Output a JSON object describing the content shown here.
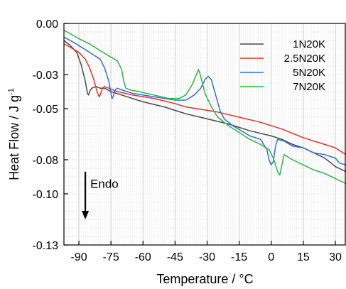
{
  "chart_data": {
    "type": "line",
    "xlabel": "Temperature / °C",
    "ylabel": "Heat Flow / J g",
    "ylabel_superscript": "-1",
    "xlim": [
      -97,
      35
    ],
    "ylim": [
      -0.13,
      0.0
    ],
    "xticks": [
      -90,
      -75,
      -60,
      -45,
      -30,
      -15,
      0,
      15,
      30
    ],
    "yticks": [
      0.0,
      -0.03,
      -0.05,
      -0.08,
      -0.1,
      -0.13
    ],
    "ytick_labels": [
      "0.00",
      "-0.03",
      "-0.05",
      "-0.08",
      "-0.10",
      "-0.13"
    ],
    "grid": true,
    "legend_position": "top-right",
    "annotation": {
      "text": "Endo"
    },
    "series": [
      {
        "name": "1N20K",
        "color": "#4a4a4a",
        "points": [
          [
            -97,
            -0.01
          ],
          [
            -94,
            -0.013
          ],
          [
            -91,
            -0.017
          ],
          [
            -89,
            -0.024
          ],
          [
            -87,
            -0.034
          ],
          [
            -86,
            -0.041
          ],
          [
            -85.5,
            -0.042
          ],
          [
            -85,
            -0.04
          ],
          [
            -84,
            -0.038
          ],
          [
            -82,
            -0.037
          ],
          [
            -80,
            -0.038
          ],
          [
            -78,
            -0.038
          ],
          [
            -75,
            -0.04
          ],
          [
            -70,
            -0.042
          ],
          [
            -60,
            -0.046
          ],
          [
            -50,
            -0.049
          ],
          [
            -40,
            -0.053
          ],
          [
            -30,
            -0.056
          ],
          [
            -20,
            -0.059
          ],
          [
            -10,
            -0.063
          ],
          [
            0,
            -0.066
          ],
          [
            5,
            -0.068
          ],
          [
            10,
            -0.071
          ],
          [
            15,
            -0.073
          ],
          [
            20,
            -0.076
          ],
          [
            25,
            -0.079
          ],
          [
            30,
            -0.084
          ],
          [
            35,
            -0.087
          ]
        ]
      },
      {
        "name": "2.5N20K",
        "color": "#e8312b",
        "points": [
          [
            -97,
            -0.012
          ],
          [
            -94,
            -0.014
          ],
          [
            -90,
            -0.017
          ],
          [
            -87,
            -0.021
          ],
          [
            -85,
            -0.026
          ],
          [
            -83,
            -0.033
          ],
          [
            -81.5,
            -0.04
          ],
          [
            -80.5,
            -0.043
          ],
          [
            -80,
            -0.042
          ],
          [
            -79,
            -0.038
          ],
          [
            -78,
            -0.037
          ],
          [
            -76,
            -0.038
          ],
          [
            -72,
            -0.04
          ],
          [
            -65,
            -0.042
          ],
          [
            -55,
            -0.044
          ],
          [
            -45,
            -0.047
          ],
          [
            -40,
            -0.049
          ],
          [
            -35,
            -0.05
          ],
          [
            -25,
            -0.052
          ],
          [
            -15,
            -0.055
          ],
          [
            -5,
            -0.058
          ],
          [
            5,
            -0.062
          ],
          [
            15,
            -0.067
          ],
          [
            25,
            -0.071
          ],
          [
            30,
            -0.073
          ],
          [
            35,
            -0.077
          ]
        ]
      },
      {
        "name": "5N20K",
        "color": "#2f6fd8",
        "points": [
          [
            -97,
            -0.008
          ],
          [
            -94,
            -0.01
          ],
          [
            -90,
            -0.013
          ],
          [
            -85,
            -0.017
          ],
          [
            -80,
            -0.021
          ],
          [
            -78,
            -0.026
          ],
          [
            -76,
            -0.034
          ],
          [
            -75,
            -0.041
          ],
          [
            -74.5,
            -0.044
          ],
          [
            -74,
            -0.043
          ],
          [
            -73,
            -0.039
          ],
          [
            -72,
            -0.038
          ],
          [
            -70,
            -0.039
          ],
          [
            -65,
            -0.041
          ],
          [
            -55,
            -0.043
          ],
          [
            -45,
            -0.045
          ],
          [
            -40,
            -0.045
          ],
          [
            -36,
            -0.042
          ],
          [
            -33,
            -0.038
          ],
          [
            -31,
            -0.033
          ],
          [
            -29.5,
            -0.031
          ],
          [
            -28,
            -0.033
          ],
          [
            -26,
            -0.042
          ],
          [
            -24,
            -0.051
          ],
          [
            -22,
            -0.056
          ],
          [
            -18,
            -0.06
          ],
          [
            -14,
            -0.063
          ],
          [
            -10,
            -0.066
          ],
          [
            -5,
            -0.068
          ],
          [
            -2,
            -0.074
          ],
          [
            -1,
            -0.08
          ],
          [
            0,
            -0.083
          ],
          [
            1,
            -0.081
          ],
          [
            2,
            -0.072
          ],
          [
            3,
            -0.068
          ],
          [
            6,
            -0.069
          ],
          [
            10,
            -0.072
          ],
          [
            15,
            -0.073
          ],
          [
            20,
            -0.076
          ],
          [
            25,
            -0.077
          ],
          [
            30,
            -0.079
          ],
          [
            32,
            -0.082
          ],
          [
            35,
            -0.083
          ]
        ]
      },
      {
        "name": "7N20K",
        "color": "#2fb34a",
        "points": [
          [
            -97,
            -0.004
          ],
          [
            -94,
            -0.006
          ],
          [
            -90,
            -0.009
          ],
          [
            -85,
            -0.012
          ],
          [
            -80,
            -0.016
          ],
          [
            -76,
            -0.019
          ],
          [
            -72,
            -0.022
          ],
          [
            -70,
            -0.027
          ],
          [
            -69,
            -0.034
          ],
          [
            -68,
            -0.038
          ],
          [
            -66,
            -0.039
          ],
          [
            -62,
            -0.04
          ],
          [
            -55,
            -0.042
          ],
          [
            -48,
            -0.044
          ],
          [
            -43,
            -0.044
          ],
          [
            -40,
            -0.042
          ],
          [
            -37,
            -0.036
          ],
          [
            -35,
            -0.03
          ],
          [
            -34,
            -0.027
          ],
          [
            -33,
            -0.031
          ],
          [
            -31,
            -0.041
          ],
          [
            -28,
            -0.049
          ],
          [
            -25,
            -0.055
          ],
          [
            -20,
            -0.06
          ],
          [
            -15,
            -0.064
          ],
          [
            -10,
            -0.068
          ],
          [
            -5,
            -0.071
          ],
          [
            -1,
            -0.074
          ],
          [
            1,
            -0.079
          ],
          [
            3,
            -0.087
          ],
          [
            4,
            -0.089
          ],
          [
            5,
            -0.083
          ],
          [
            6,
            -0.077
          ],
          [
            10,
            -0.08
          ],
          [
            15,
            -0.083
          ],
          [
            20,
            -0.086
          ],
          [
            25,
            -0.088
          ],
          [
            30,
            -0.091
          ],
          [
            35,
            -0.094
          ]
        ]
      }
    ]
  }
}
